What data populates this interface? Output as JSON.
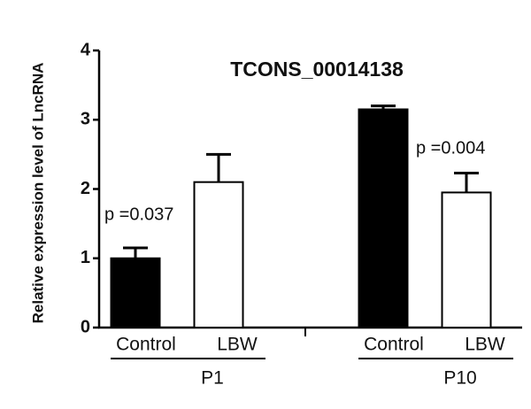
{
  "chart_data": {
    "type": "bar",
    "title": "TCONS_00014138",
    "y_label": "Relative expression level of LncRNA",
    "categories": [
      "P1",
      "P10"
    ],
    "series": [
      {
        "name": "Control",
        "color": "#000000",
        "values": [
          1.0,
          3.15
        ],
        "errors": [
          0.15,
          0.05
        ]
      },
      {
        "name": "LBW",
        "color": "#ffffff",
        "values": [
          2.1,
          1.95
        ],
        "errors": [
          0.4,
          0.28
        ]
      }
    ],
    "annotations": [
      "p =0.037",
      "p =0.004"
    ],
    "ylim": [
      0,
      4
    ],
    "yticks": [
      0,
      1,
      2,
      3,
      4
    ]
  }
}
